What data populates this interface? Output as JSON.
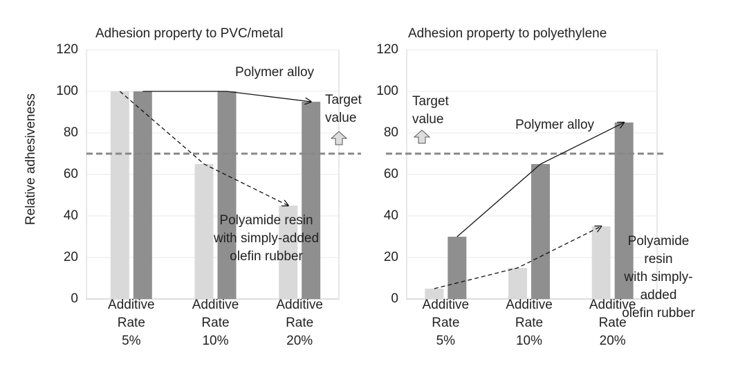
{
  "chart_data": [
    {
      "type": "bar",
      "title": "Adhesion property to PVC/metal",
      "ylabel": "Relative adhesiveness",
      "categories": [
        "Additive\nRate\n5%",
        "Additive\nRate\n10%",
        "Additive\nRate\n20%"
      ],
      "series": [
        {
          "name": "Polyamide resin\nwith simply-added\nolefin rubber",
          "color": "#d9d9d9",
          "values": [
            100,
            65,
            45
          ]
        },
        {
          "name": "Polymer alloy",
          "color": "#8f8f8f",
          "values": [
            100,
            100,
            95
          ]
        }
      ],
      "ylim": [
        0,
        120
      ],
      "yticks": [
        0,
        20,
        40,
        60,
        80,
        100,
        120
      ],
      "grid": true,
      "target": 70,
      "target_label": "Target\nvalue"
    },
    {
      "type": "bar",
      "title": "Adhesion property to polyethylene",
      "categories": [
        "Additive\nRate\n5%",
        "Additive\nRate\n10%",
        "Additive\nRate\n20%"
      ],
      "series": [
        {
          "name": "Polyamide resin\nwith simply-added\nolefin rubber",
          "color": "#d9d9d9",
          "values": [
            5,
            15,
            35
          ]
        },
        {
          "name": "Polymer alloy",
          "color": "#8f8f8f",
          "values": [
            30,
            65,
            85
          ]
        }
      ],
      "ylim": [
        0,
        120
      ],
      "yticks": [
        0,
        20,
        40,
        60,
        80,
        100,
        120
      ],
      "grid": true,
      "target": 70,
      "target_label": "Target\nvalue"
    }
  ]
}
